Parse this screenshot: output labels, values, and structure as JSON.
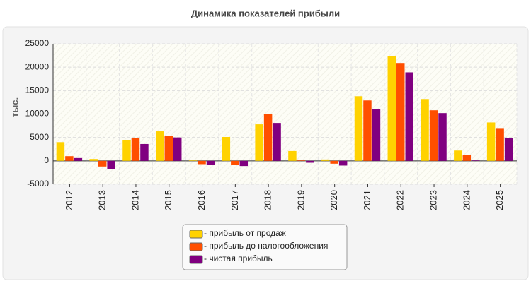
{
  "chart_data": {
    "type": "bar",
    "title": "Динамика показателей прибыли",
    "y_label": "тыс.",
    "categories": [
      "2012",
      "2013",
      "2014",
      "2015",
      "2016",
      "2017",
      "2018",
      "2019",
      "2020",
      "2021",
      "2022",
      "2023",
      "2024",
      "2025"
    ],
    "series": [
      {
        "name": "- прибыль от продаж",
        "color": "#ffd200",
        "values": [
          4000,
          400,
          4500,
          6300,
          100,
          5100,
          7800,
          2100,
          300,
          13800,
          22300,
          13200,
          2200,
          8200
        ]
      },
      {
        "name": "- прибыль до налогообложения",
        "color": "#ff4f00",
        "values": [
          1000,
          -1200,
          4800,
          5400,
          -700,
          -900,
          10000,
          100,
          -600,
          12900,
          20900,
          10800,
          1300,
          7000
        ]
      },
      {
        "name": "- чистая прибыль",
        "color": "#800080",
        "values": [
          600,
          -1700,
          3600,
          5000,
          -900,
          -1100,
          8100,
          -400,
          -1000,
          11000,
          18900,
          10200,
          100,
          4900
        ]
      }
    ],
    "ylim": [
      -5000,
      25000
    ],
    "yticks": [
      -5000,
      0,
      5000,
      10000,
      15000,
      20000,
      25000
    ],
    "grid": true
  }
}
